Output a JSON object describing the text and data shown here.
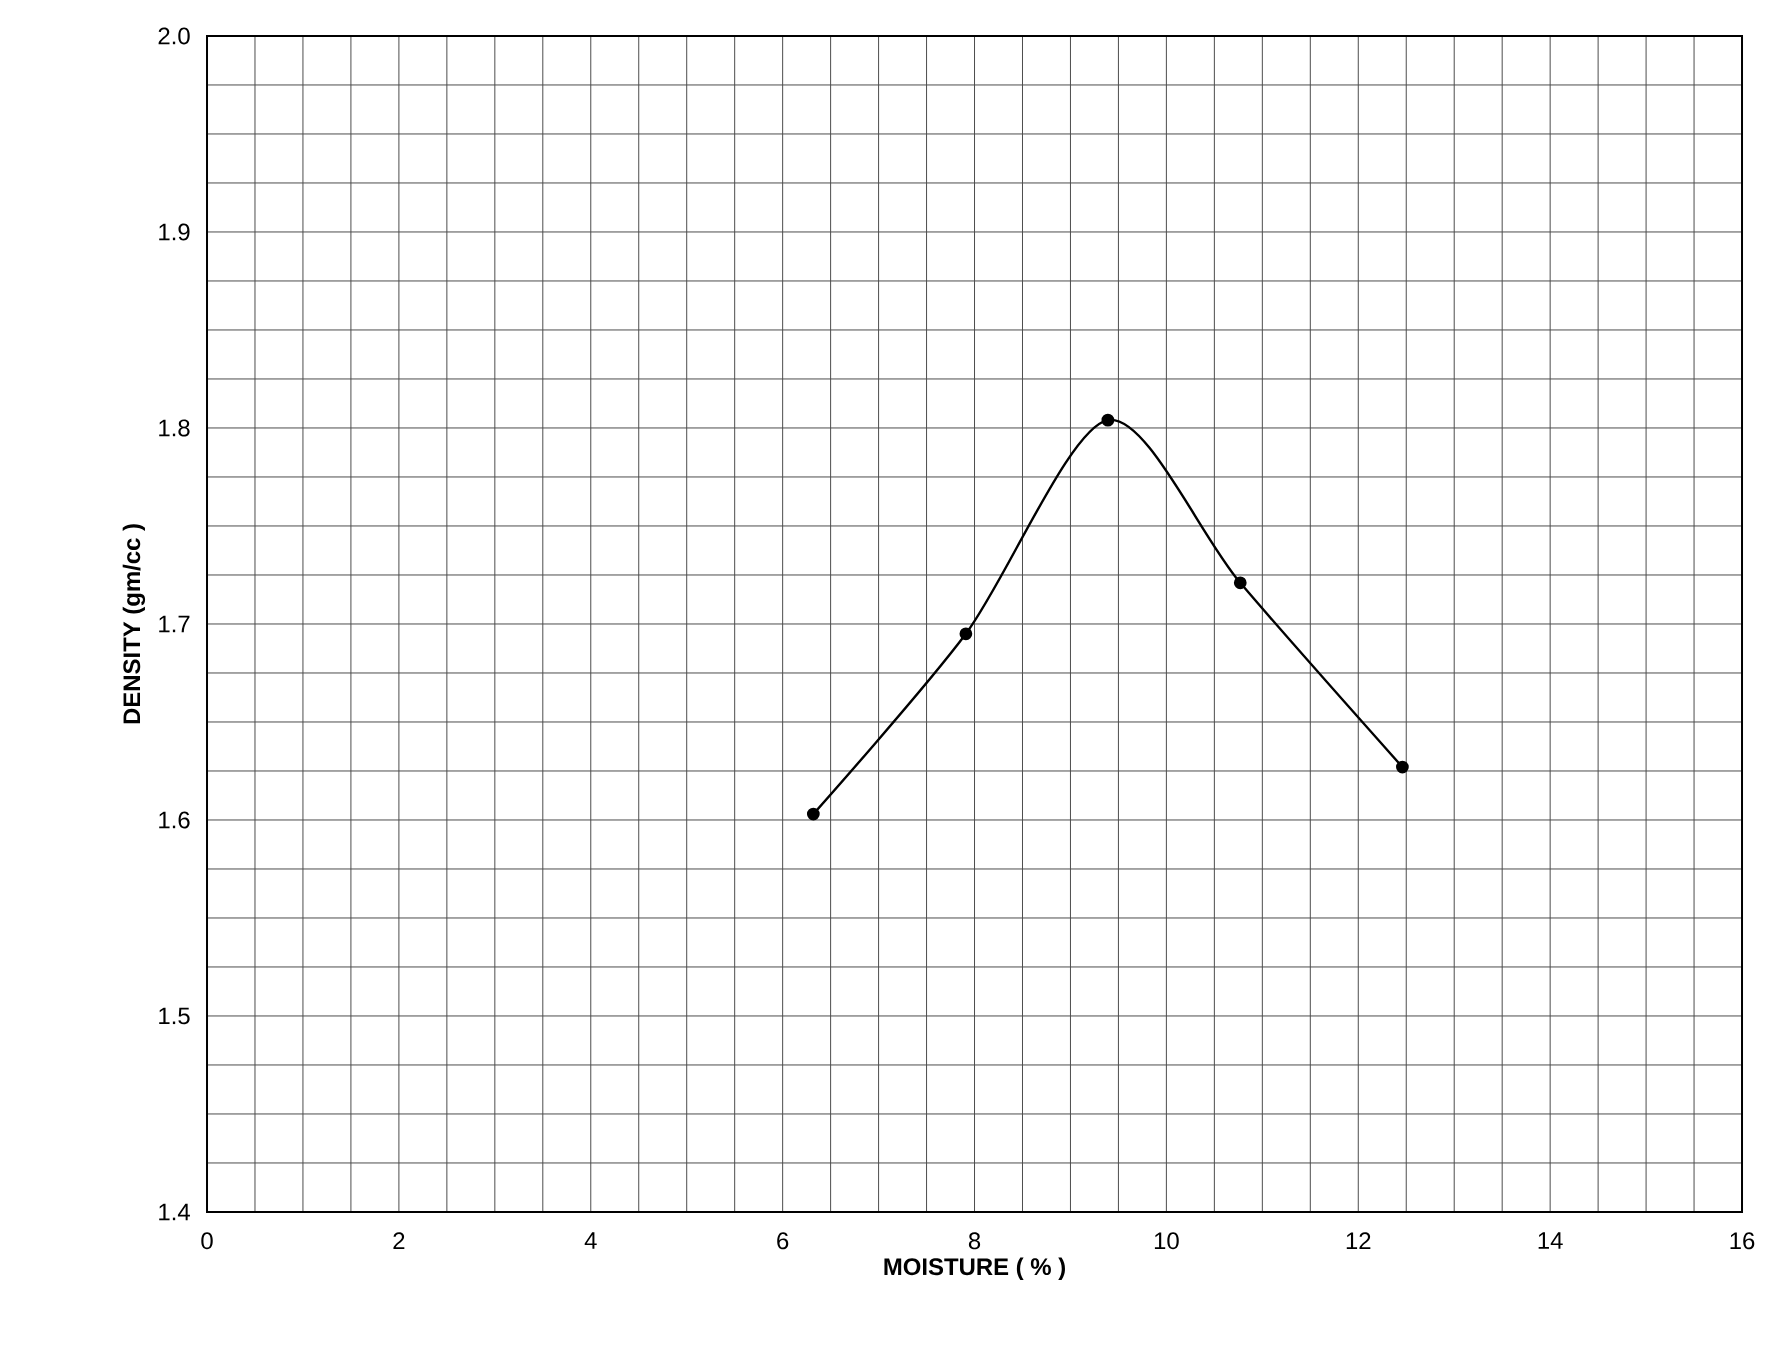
{
  "chart_data": {
    "type": "line",
    "xlabel": "**MOISTURE ( % )**",
    "ylabel": "**DENSITY  (gm/cc )**",
    "x": [
      6.32,
      7.91,
      9.39,
      10.77,
      12.46
    ],
    "values": [
      1.603,
      1.695,
      1.804,
      1.721,
      1.627
    ],
    "color": "#000000",
    "marker": "circle",
    "line_style": "solid",
    "grid": true,
    "xlim": [
      0,
      16
    ],
    "ylim": [
      1.4,
      2.0
    ],
    "xticks": [
      0,
      {
        "value": 0.5,
        "label": null
      },
      {
        "value": 1,
        "label": null
      },
      {
        "value": 1.5,
        "label": null
      },
      2,
      {
        "value": 2.5,
        "label": null
      },
      {
        "value": 3,
        "label": null
      },
      {
        "value": 3.5,
        "label": null
      },
      4,
      {
        "value": 4.5,
        "label": null
      },
      {
        "value": 5,
        "label": null
      },
      {
        "value": 5.5,
        "label": null
      },
      6,
      {
        "value": 6.5,
        "label": null
      },
      {
        "value": 7,
        "label": null
      },
      {
        "value": 7.5,
        "label": null
      },
      8,
      {
        "value": 8.5,
        "label": null
      },
      {
        "value": 9,
        "label": null
      },
      {
        "value": 9.5,
        "label": null
      },
      10,
      {
        "value": 10.5,
        "label": null
      },
      {
        "value": 11,
        "label": null
      },
      {
        "value": 11.5,
        "label": null
      },
      12,
      {
        "value": 12.5,
        "label": null
      },
      {
        "value": 13,
        "label": null
      },
      {
        "value": 13.5,
        "label": null
      },
      14,
      {
        "value": 14.5,
        "label": null
      },
      {
        "value": 15,
        "label": null
      },
      {
        "value": 15.5,
        "label": null
      },
      16
    ],
    "yticks": [
      1.4,
      {
        "value": 1.425,
        "label": null
      },
      {
        "value": 1.45,
        "label": null
      },
      {
        "value": 1.475,
        "label": null
      },
      1.5,
      {
        "value": 1.525,
        "label": null
      },
      {
        "value": 1.55,
        "label": null
      },
      {
        "value": 1.575,
        "label": null
      },
      1.6,
      {
        "value": 1.625,
        "label": null
      },
      {
        "value": 1.65,
        "label": null
      },
      {
        "value": 1.675,
        "label": null
      },
      1.7,
      {
        "value": 1.725,
        "label": null
      },
      {
        "value": 1.75,
        "label": null
      },
      {
        "value": 1.775,
        "label": null
      },
      1.8,
      {
        "value": 1.825,
        "label": null
      },
      {
        "value": 1.85,
        "label": null
      },
      {
        "value": 1.875,
        "label": null
      },
      1.9,
      {
        "value": 1.925,
        "label": null
      },
      {
        "value": 1.95,
        "label": null
      },
      {
        "value": 1.975,
        "label": null
      },
      {
        "value": 2.0,
        "label": "2.0"
      }
    ]
  }
}
